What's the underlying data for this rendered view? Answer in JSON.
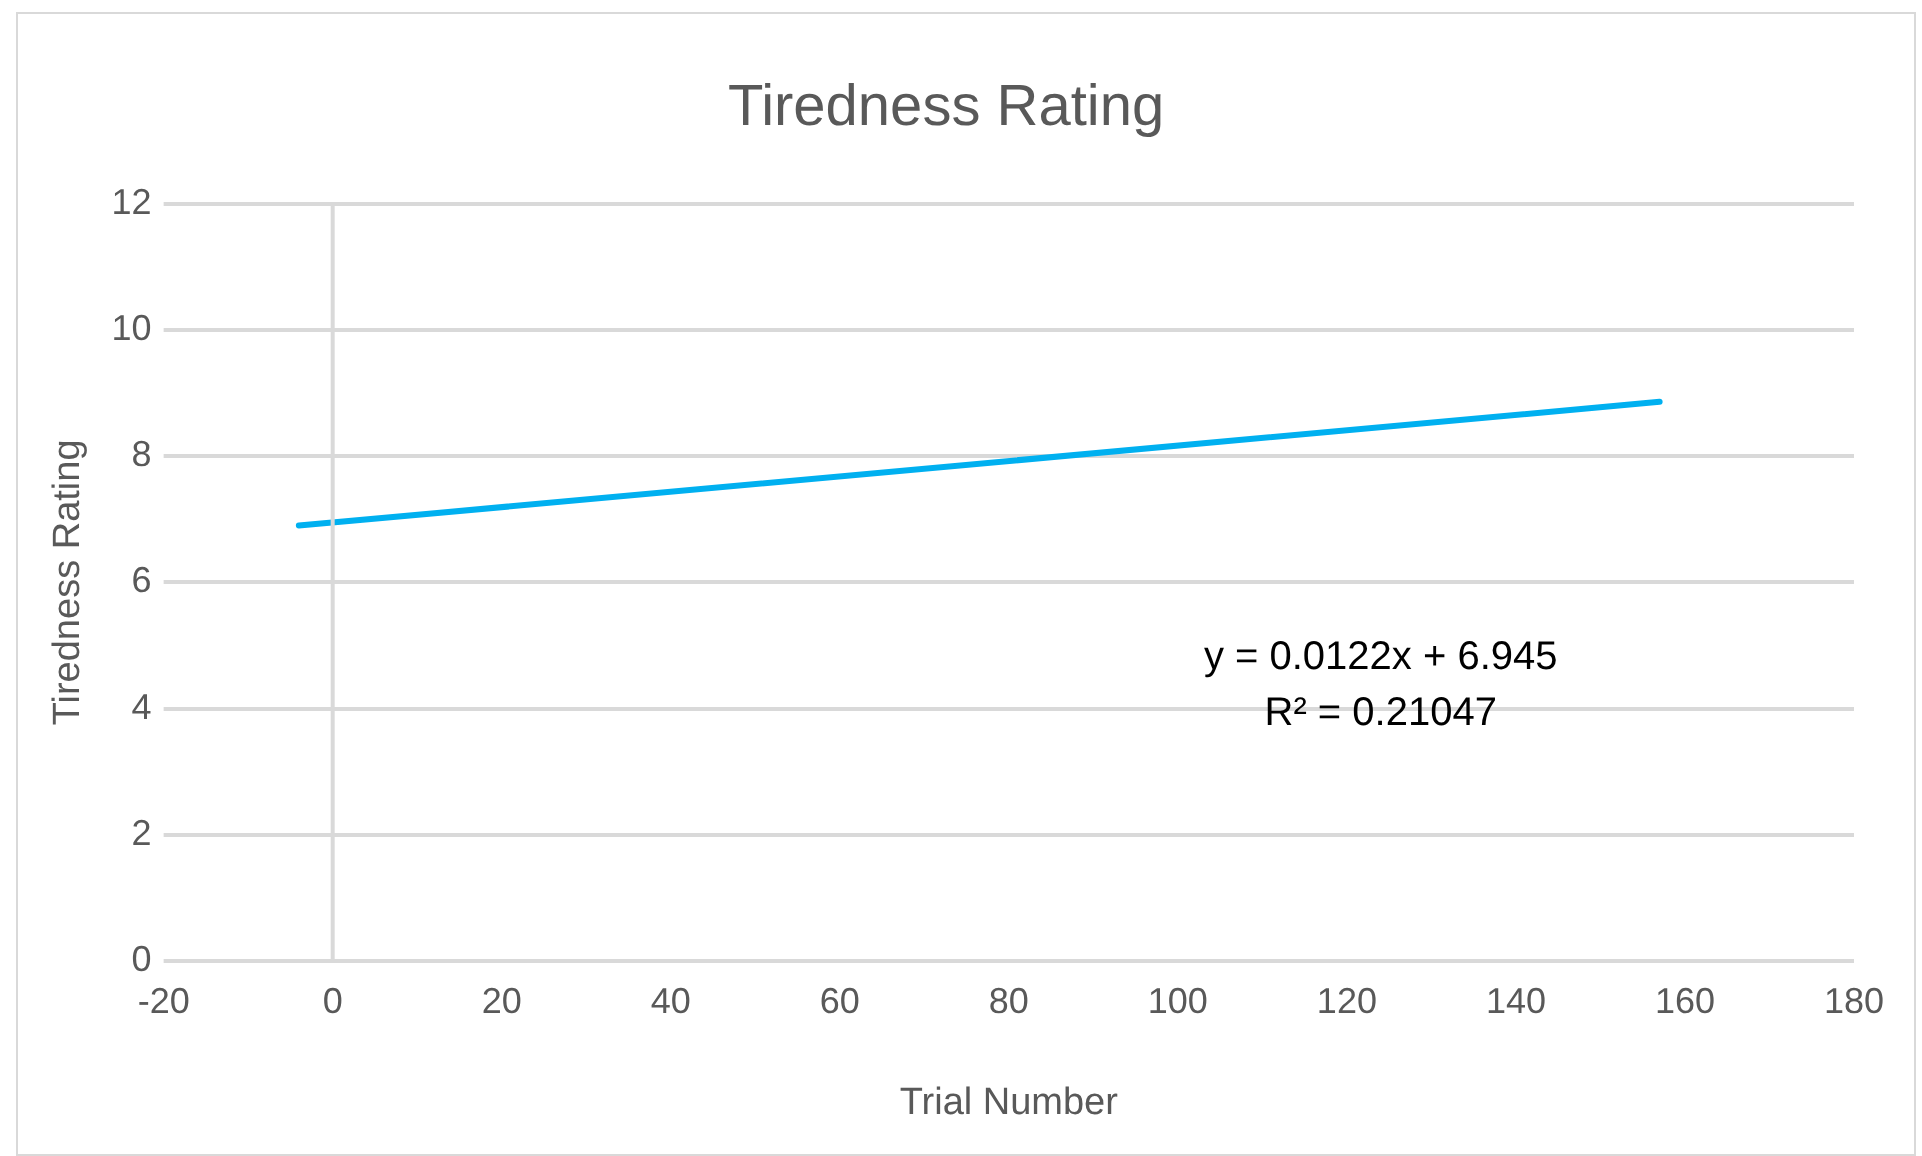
{
  "chart_data": {
    "type": "line",
    "title": "Tiredness Rating",
    "xlabel": "Trial Number",
    "ylabel": "Tiredness Rating",
    "series": [
      {
        "color": "#00b0f0",
        "x": [
          -4,
          157
        ],
        "values": [
          6.9,
          8.86
        ]
      }
    ],
    "xlim": [
      -20,
      180
    ],
    "xticks": [
      -20,
      0,
      20,
      40,
      60,
      80,
      100,
      120,
      140,
      160,
      180
    ],
    "ylim": [
      0,
      12
    ],
    "yticks": [
      0,
      2,
      4,
      6,
      8,
      10,
      12
    ],
    "grid": "y",
    "ref_lines": [
      {
        "axis": "x",
        "value": 0,
        "color": "#d9d9d9"
      }
    ],
    "legend": false,
    "marker": "none",
    "line_style": "solid",
    "annotations": [
      "y = 0.0122x + 6.945",
      "R² = 0.21047"
    ]
  }
}
